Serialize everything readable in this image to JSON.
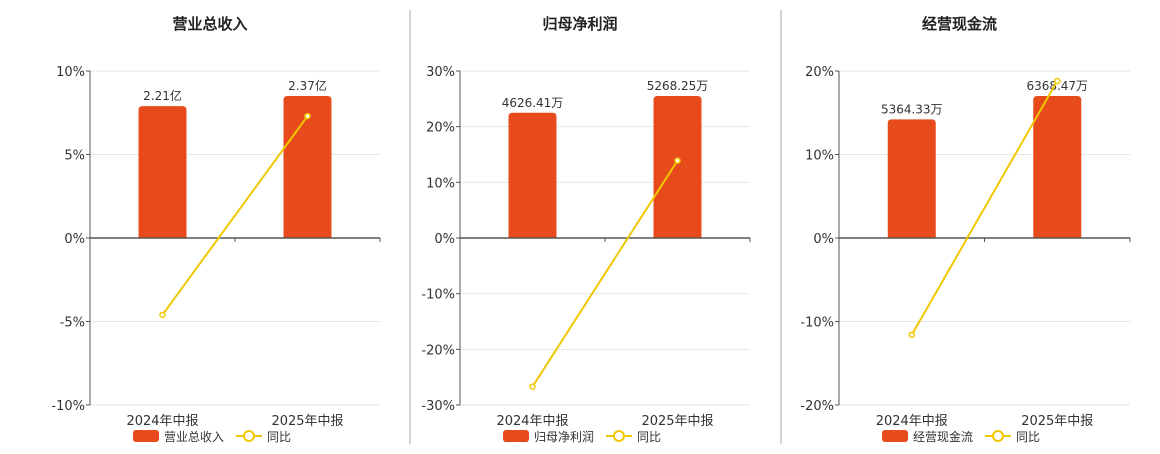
{
  "colors": {
    "bar": "#e84b1b",
    "line": "#f0c800",
    "axis": "#555555",
    "grid": "#e6e6e6",
    "divider": "#aaaaaa",
    "text": "#333333",
    "title": "#222222"
  },
  "chart_data": [
    {
      "type": "bar",
      "title": "营业总收入",
      "categories": [
        "2024年中报",
        "2025年中报"
      ],
      "bar_labels": [
        "2.21亿",
        "2.37亿"
      ],
      "series": [
        {
          "name": "营业总收入",
          "kind": "bar",
          "values": [
            7.9,
            8.5
          ]
        },
        {
          "name": "同比",
          "kind": "line",
          "values": [
            -4.6,
            7.3
          ]
        }
      ],
      "ylim": [
        -10,
        10
      ],
      "ticks": [
        "10%",
        "5%",
        "0%",
        "-5%",
        "-10%"
      ],
      "tick_values": [
        10,
        5,
        0,
        -5,
        -10
      ],
      "legend": "bottom"
    },
    {
      "type": "bar",
      "title": "归母净利润",
      "categories": [
        "2024年中报",
        "2025年中报"
      ],
      "bar_labels": [
        "4626.41万",
        "5268.25万"
      ],
      "series": [
        {
          "name": "归母净利润",
          "kind": "bar",
          "values": [
            22.5,
            25.5
          ]
        },
        {
          "name": "同比",
          "kind": "line",
          "values": [
            -26.7,
            13.9
          ]
        }
      ],
      "ylim": [
        -30,
        30
      ],
      "ticks": [
        "30%",
        "20%",
        "10%",
        "0%",
        "-10%",
        "-20%",
        "-30%"
      ],
      "tick_values": [
        30,
        20,
        10,
        0,
        -10,
        -20,
        -30
      ],
      "legend": "bottom"
    },
    {
      "type": "bar",
      "title": "经营现金流",
      "categories": [
        "2024年中报",
        "2025年中报"
      ],
      "bar_labels": [
        "5364.33万",
        "6368.47万"
      ],
      "series": [
        {
          "name": "经营现金流",
          "kind": "bar",
          "values": [
            14.2,
            17.0
          ]
        },
        {
          "name": "同比",
          "kind": "line",
          "values": [
            -11.6,
            18.8
          ]
        }
      ],
      "ylim": [
        -20,
        20
      ],
      "ticks": [
        "20%",
        "10%",
        "0%",
        "-10%",
        "-20%"
      ],
      "tick_values": [
        20,
        10,
        0,
        -10,
        -20
      ],
      "legend": "bottom"
    }
  ]
}
